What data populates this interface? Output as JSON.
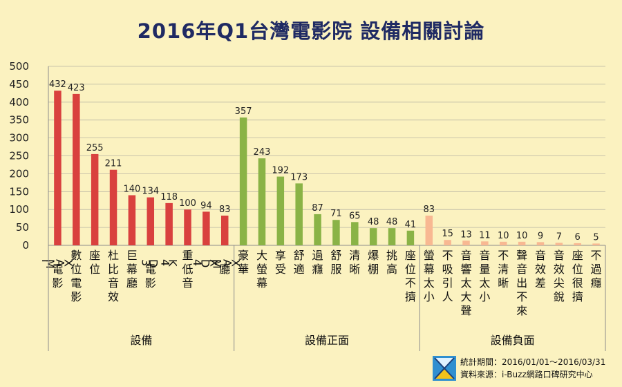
{
  "chart_data": {
    "type": "bar",
    "title": "2016年Q1台灣電影院 設備相關討論",
    "ylim": [
      0,
      500
    ],
    "yticks": [
      0,
      50,
      100,
      150,
      200,
      250,
      300,
      350,
      400,
      450,
      500
    ],
    "grid": true,
    "groups": [
      {
        "label": "設備",
        "color": "#d9413e",
        "categories": [
          "IMAX電影",
          "數位電影",
          "座位",
          "杜比音效",
          "巨幕廳",
          "3D電影",
          "4K",
          "重低音",
          "4DX",
          "IMAX廳"
        ],
        "values": [
          432,
          423,
          255,
          211,
          140,
          134,
          118,
          100,
          94,
          83
        ]
      },
      {
        "label": "設備正面",
        "color": "#8ab346",
        "categories": [
          "豪華",
          "大螢幕",
          "享受",
          "舒適",
          "過癮",
          "舒服",
          "清晰",
          "爆棚",
          "挑高",
          "座位不擠"
        ],
        "values": [
          357,
          243,
          192,
          173,
          87,
          71,
          65,
          48,
          48,
          41
        ]
      },
      {
        "label": "設備負面",
        "color": "#f8b892",
        "categories": [
          "螢幕太小",
          "不吸引人",
          "音響太大聲",
          "音量太小",
          "不清晰",
          "聲音出不來",
          "音效差",
          "音效尖銳",
          "座位很擠",
          "不過癮"
        ],
        "values": [
          83,
          15,
          13,
          11,
          10,
          10,
          9,
          7,
          6,
          5
        ]
      }
    ]
  },
  "footer": {
    "period": "統計期間：2016/01/01～2016/03/31",
    "source": "資料來源：i-Buzz網路口碑研究中心"
  }
}
